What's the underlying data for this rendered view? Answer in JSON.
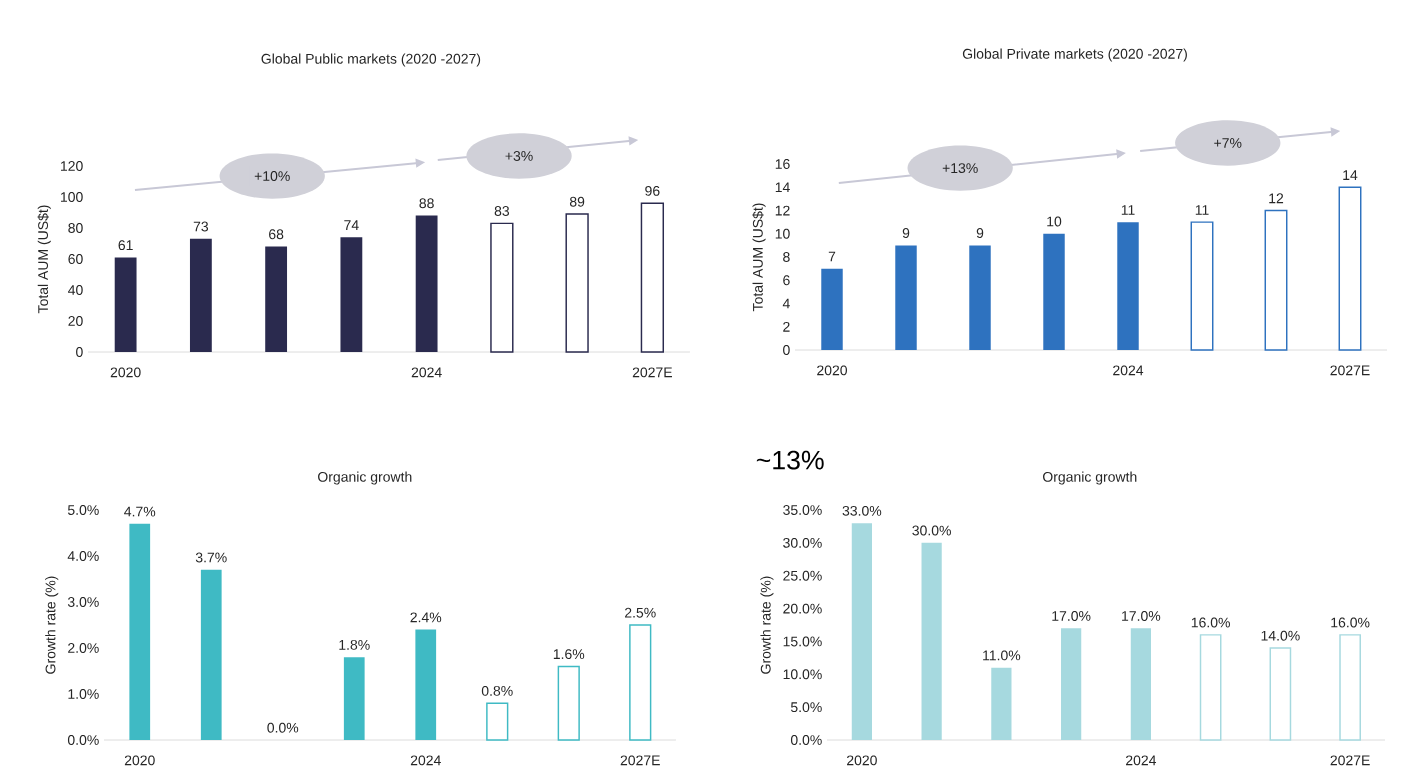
{
  "chart_data": [
    {
      "type": "bar",
      "title": "Global Public markets (2020 -2027)",
      "ylabel": "Total AUM (US$t)",
      "categories": [
        "2020",
        null,
        null,
        null,
        "2024",
        null,
        null,
        "2027E"
      ],
      "series": [
        {
          "type": "bar",
          "color": "#2a2a4e",
          "values": [
            61,
            73,
            68,
            74,
            88,
            null,
            null,
            null
          ]
        },
        {
          "type": "bar",
          "color": "#2a2a4e",
          "values": [
            null,
            null,
            null,
            null,
            null,
            83,
            89,
            96
          ]
        }
      ],
      "ylim": [
        0,
        120
      ],
      "yticks": [
        0,
        20,
        40,
        60,
        80,
        100,
        120
      ],
      "data_labels": true,
      "annotations": [
        "+10%",
        "+3%"
      ]
    },
    {
      "type": "bar",
      "title": "Global Private markets (2020 -2027)",
      "ylabel": "Total AUM (US$t)",
      "categories": [
        "2020",
        null,
        null,
        null,
        "2024",
        null,
        null,
        "2027E"
      ],
      "series": [
        {
          "type": "bar",
          "color": "#2e72bf",
          "values": [
            7,
            9,
            9,
            10,
            11,
            null,
            null,
            null
          ]
        },
        {
          "type": "bar",
          "color": "#2e72bf",
          "values": [
            null,
            null,
            null,
            null,
            null,
            11,
            12,
            14
          ]
        }
      ],
      "ylim": [
        0,
        16
      ],
      "yticks": [
        0,
        2,
        4,
        6,
        8,
        10,
        12,
        14,
        16
      ],
      "data_labels": true,
      "annotations": [
        "+13%",
        "+7%"
      ]
    },
    {
      "type": "bar",
      "title": "Organic growth",
      "ylabel": "Growth rate (%)",
      "categories": [
        "2020",
        null,
        null,
        null,
        "2024",
        null,
        null,
        "2027E"
      ],
      "series": [
        {
          "type": "bar",
          "color": "#3fbac4",
          "values": [
            4.7,
            3.7,
            0.0,
            1.8,
            2.4,
            null,
            null,
            null
          ],
          "value_labels": [
            "4.7%",
            "3.7%",
            "0.0%",
            "1.8%",
            "2.4%",
            null,
            null,
            null
          ]
        },
        {
          "type": "bar",
          "color": "#3fbac4",
          "values": [
            null,
            null,
            null,
            null,
            null,
            0.8,
            1.6,
            2.5
          ],
          "value_labels": [
            null,
            null,
            null,
            null,
            null,
            "0.8%",
            "1.6%",
            "2.5%"
          ]
        }
      ],
      "ylim": [
        0,
        5
      ],
      "yticks": [
        {
          "value": 0,
          "label": "0.0%"
        },
        {
          "value": 1,
          "label": "1.0%"
        },
        {
          "value": 2,
          "label": "2.0%"
        },
        {
          "value": 3,
          "label": "3.0%"
        },
        {
          "value": 4,
          "label": "4.0%"
        },
        {
          "value": 5,
          "label": "5.0%"
        }
      ]
    },
    {
      "type": "bar",
      "title": "Organic growth",
      "ylabel": "Growth rate (%)",
      "categories": [
        "2020",
        null,
        null,
        null,
        "2024",
        null,
        null,
        "2027E"
      ],
      "series": [
        {
          "type": "bar",
          "color": "#a6d9df",
          "values": [
            33,
            30,
            11,
            17,
            17,
            null,
            null,
            null
          ],
          "value_labels": [
            "33.0%",
            "30.0%",
            "11.0%",
            "17.0%",
            "17.0%",
            null,
            null,
            null
          ]
        },
        {
          "type": "bar",
          "color": "#a6d9df",
          "values": [
            null,
            null,
            null,
            null,
            null,
            16,
            14,
            16
          ],
          "value_labels": [
            null,
            null,
            null,
            null,
            null,
            "16.0%",
            "14.0%",
            "16.0%"
          ]
        }
      ],
      "ylim": [
        0,
        35
      ],
      "yticks": [
        {
          "value": 0,
          "label": "0.0%"
        },
        {
          "value": 5,
          "label": "5.0%"
        },
        {
          "value": 10,
          "label": "10.0%"
        },
        {
          "value": 15,
          "label": "15.0%"
        },
        {
          "value": 20,
          "label": "20.0%"
        },
        {
          "value": 25,
          "label": "25.0%"
        },
        {
          "value": 30,
          "label": "30.0%"
        },
        {
          "value": 35,
          "label": "35.0%"
        }
      ],
      "annotations": [
        "~13%"
      ]
    }
  ]
}
